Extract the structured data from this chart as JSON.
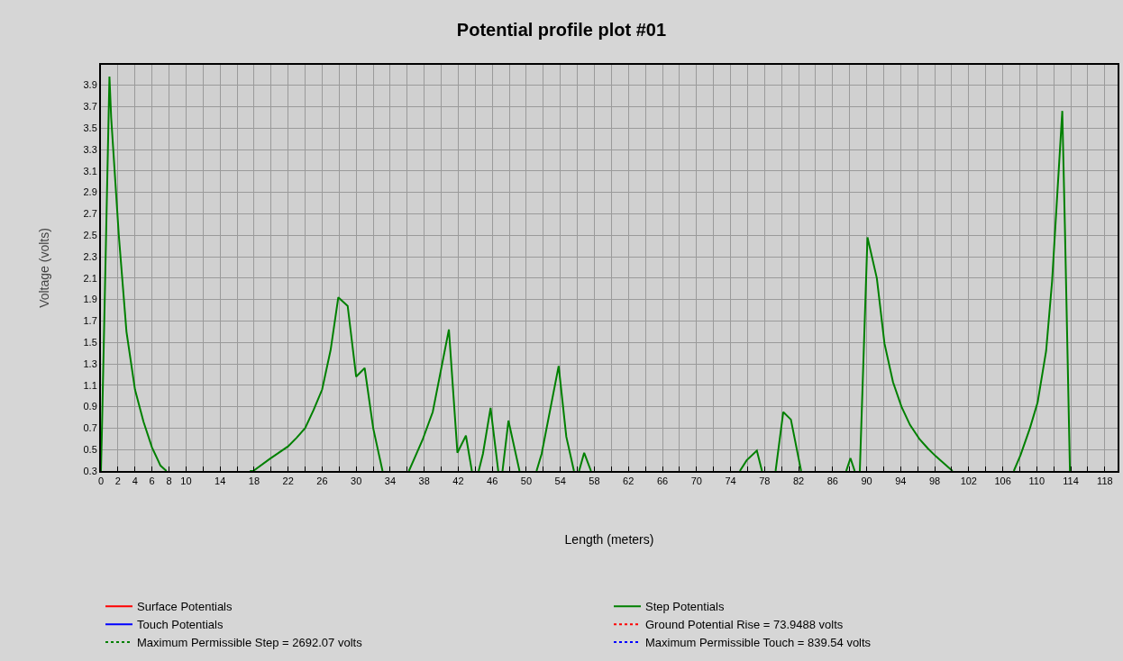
{
  "chart_data": {
    "type": "line",
    "title": "Potential profile plot #01",
    "xlabel": "Length (meters)",
    "ylabel": "Voltage (volts)",
    "xlim": [
      0,
      119.5
    ],
    "ylim": [
      0.3,
      4.09
    ],
    "xticks": [
      0,
      2,
      4,
      6,
      8,
      10,
      {
        "value": 12,
        "label": null
      },
      14,
      {
        "value": 16,
        "label": null
      },
      18,
      {
        "value": 20,
        "label": null
      },
      22,
      {
        "value": 24,
        "label": null
      },
      26,
      {
        "value": 28,
        "label": null
      },
      30,
      {
        "value": 32,
        "label": null
      },
      34,
      {
        "value": 36,
        "label": null
      },
      38,
      {
        "value": 40,
        "label": null
      },
      42,
      {
        "value": 44,
        "label": null
      },
      46,
      {
        "value": 48,
        "label": null
      },
      50,
      {
        "value": 52,
        "label": null
      },
      54,
      {
        "value": 56,
        "label": null
      },
      58,
      {
        "value": 60,
        "label": null
      },
      62,
      {
        "value": 64,
        "label": null
      },
      66,
      {
        "value": 68,
        "label": null
      },
      70,
      {
        "value": 72,
        "label": null
      },
      74,
      {
        "value": 76,
        "label": null
      },
      78,
      {
        "value": 80,
        "label": null
      },
      82,
      {
        "value": 84,
        "label": null
      },
      86,
      {
        "value": 88,
        "label": null
      },
      90,
      {
        "value": 92,
        "label": null
      },
      94,
      {
        "value": 96,
        "label": null
      },
      98,
      {
        "value": 100,
        "label": null
      },
      102,
      {
        "value": 104,
        "label": null
      },
      106,
      {
        "value": 108,
        "label": null
      },
      110,
      {
        "value": 112,
        "label": null
      },
      114,
      {
        "value": 116,
        "label": null
      },
      118
    ],
    "yticks": [
      0.3,
      0.5,
      0.7,
      0.9,
      1.1,
      1.3,
      1.5,
      1.7,
      1.9,
      2.1,
      2.3,
      2.5,
      2.7,
      2.9,
      3.1,
      3.3,
      3.5,
      3.7,
      3.9
    ],
    "grid": true,
    "legend": "bottom",
    "series": [
      {
        "name": "Surface Potentials",
        "color": "#ff0000",
        "line_style": "solid"
      },
      {
        "name": "Step Potentials",
        "color": "#008000",
        "line_style": "solid",
        "x": [
          0,
          0.1,
          0.4,
          1.0,
          1.2,
          2.1,
          3.0,
          4.0,
          5.0,
          6.0,
          7.0,
          7.7,
          12,
          17.5,
          17.9,
          19.8,
          22,
          23,
          24,
          25,
          26,
          27,
          27.9,
          29,
          30,
          31,
          32,
          33.1,
          35,
          36.2,
          37.8,
          39.0,
          40.9,
          41.9,
          42.9,
          43.6,
          44,
          44.4,
          44.9,
          45.8,
          46.7,
          47,
          47.2,
          47.9,
          49.2,
          50,
          51.2,
          51.8,
          53.8,
          54.7,
          55.6,
          56,
          56.2,
          56.8,
          57.6,
          66,
          75.1,
          75.9,
          77.1,
          77.7,
          78.5,
          79.3,
          80.2,
          81.1,
          82.3,
          85,
          87.6,
          88.1,
          88.6,
          88.9,
          89.2,
          90.1,
          91.2,
          92.1,
          93.1,
          94.1,
          95.1,
          96.2,
          97.2,
          98.1,
          100.1,
          104,
          107.3,
          108.1,
          109.2,
          110.1,
          111.1,
          111.8,
          112.5,
          113.0,
          113.3,
          113.9
        ],
        "values": [
          0.3,
          0.62,
          1.73,
          3.98,
          3.6,
          2.5,
          1.6,
          1.06,
          0.76,
          0.52,
          0.35,
          0.3,
          null,
          0.3,
          0.3,
          0.41,
          0.53,
          0.61,
          0.7,
          0.87,
          1.06,
          1.43,
          1.92,
          1.84,
          1.18,
          1.26,
          0.7,
          0.3,
          null,
          0.3,
          0.59,
          0.85,
          1.62,
          0.47,
          0.63,
          0.3,
          null,
          0.3,
          0.46,
          0.89,
          0.3,
          null,
          0.3,
          0.77,
          0.3,
          null,
          0.3,
          0.46,
          1.28,
          0.62,
          0.3,
          null,
          0.3,
          0.47,
          0.3,
          null,
          0.3,
          0.4,
          0.49,
          0.3,
          null,
          0.3,
          0.85,
          0.78,
          0.3,
          null,
          0.3,
          0.42,
          0.3,
          null,
          0.3,
          2.48,
          2.1,
          1.49,
          1.13,
          0.9,
          0.73,
          0.6,
          0.51,
          0.44,
          0.3,
          null,
          0.3,
          0.45,
          0.7,
          0.94,
          1.42,
          2.07,
          3.0,
          3.66,
          2.6,
          0.3
        ]
      },
      {
        "name": "Touch Potentials",
        "color": "#0000ff",
        "line_style": "solid"
      },
      {
        "name": "Ground Potential Rise = 73.9488 volts",
        "color": "#ff0000",
        "line_style": "dotted"
      },
      {
        "name": "Maximum Permissible Step = 2692.07 volts",
        "color": "#008000",
        "line_style": "dotted"
      },
      {
        "name": "Maximum Permissible Touch = 839.54 volts",
        "color": "#0000ff",
        "line_style": "dotted"
      }
    ]
  }
}
